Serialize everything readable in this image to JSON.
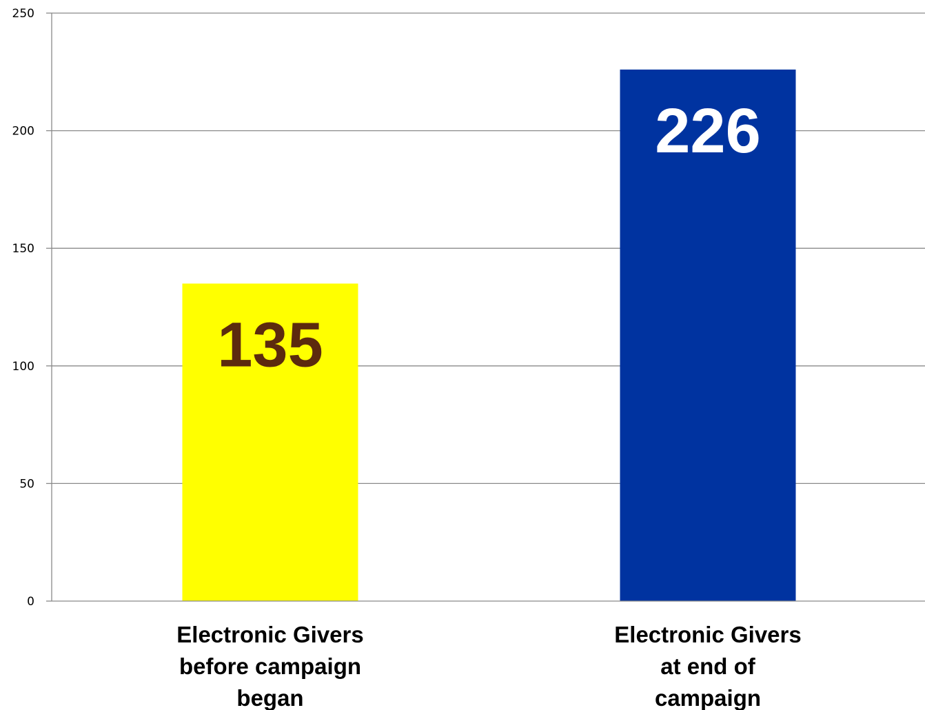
{
  "chart_data": {
    "type": "bar",
    "title": "",
    "xlabel": "",
    "ylabel": "",
    "ylim": [
      0,
      250
    ],
    "yticks": [
      0,
      50,
      100,
      150,
      200,
      250
    ],
    "grid": true,
    "legend": "none",
    "categories": [
      [
        "Electronic Givers",
        "before campaign",
        "began"
      ],
      [
        "Electronic Givers",
        "at end of",
        "campaign"
      ]
    ],
    "values": [
      135,
      226
    ],
    "data_labels": [
      "135",
      "226"
    ],
    "bar_colors": [
      "#ffff00",
      "#0033a0"
    ],
    "data_label_colors": [
      "#5c2a0e",
      "#ffffff"
    ],
    "gridline_color": "#898989"
  }
}
